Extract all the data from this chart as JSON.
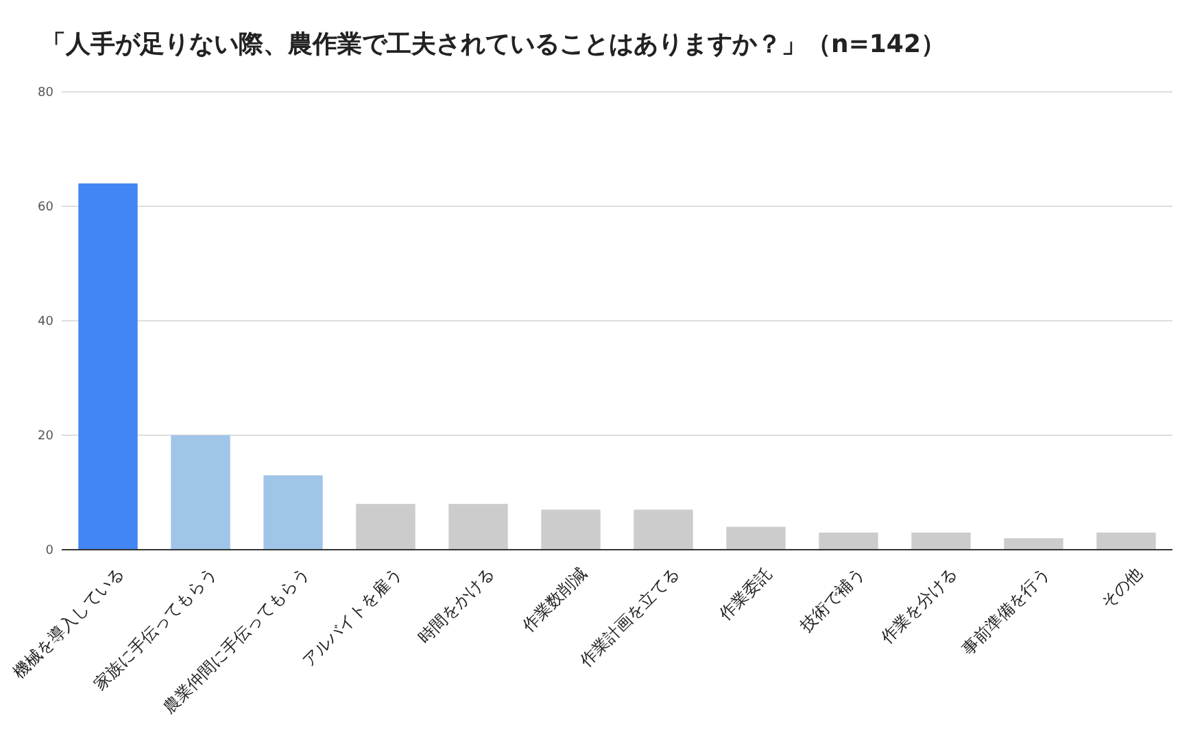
{
  "chart_data": {
    "type": "bar",
    "title": "「人手が足りない際、農作業で工夫されていることはありますか？」（n=142）",
    "categories": [
      "機械を導入している",
      "家族に手伝ってもらう",
      "農業仲間に手伝ってもらう",
      "アルバイトを雇う",
      "時間をかける",
      "作業数削減",
      "作業計画を立てる",
      "作業委託",
      "技術で補う",
      "作業を分ける",
      "事前準備を行う",
      "その他"
    ],
    "values": [
      64,
      20,
      13,
      8,
      8,
      7,
      7,
      4,
      3,
      3,
      2,
      3
    ],
    "colors": [
      "#4285f4",
      "#9fc5e8",
      "#9fc5e8",
      "#cccccc",
      "#cccccc",
      "#cccccc",
      "#cccccc",
      "#cccccc",
      "#cccccc",
      "#cccccc",
      "#cccccc",
      "#cccccc"
    ],
    "ylim": [
      0,
      80
    ],
    "yticks": [
      0,
      20,
      40,
      60,
      80
    ],
    "grid": "y"
  }
}
